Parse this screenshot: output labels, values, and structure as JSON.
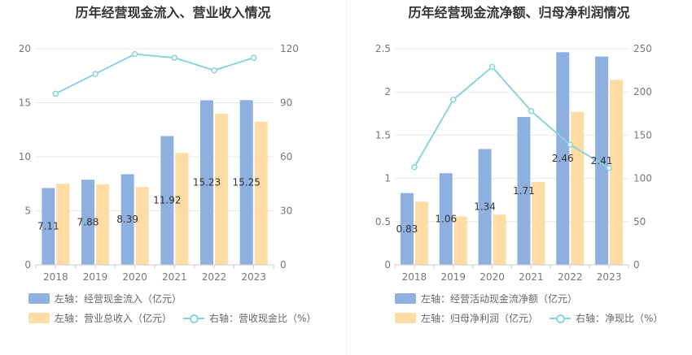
{
  "chart_data": [
    {
      "type": "bar",
      "title": "历年经营现金流入、营业收入情况",
      "categories": [
        "2018",
        "2019",
        "2020",
        "2021",
        "2022",
        "2023"
      ],
      "left_axis": {
        "min": 0,
        "max": 20,
        "ticks": [
          "0",
          "5",
          "10",
          "15",
          "20"
        ]
      },
      "right_axis": {
        "min": 0,
        "max": 120,
        "ticks": [
          "0",
          "30",
          "60",
          "90",
          "120"
        ]
      },
      "series": [
        {
          "name": "左轴：经营现金流入（亿元）",
          "type": "bar",
          "axis": "left",
          "color": "#8eb0de",
          "values": [
            7.11,
            7.88,
            8.39,
            11.92,
            15.23,
            15.25
          ],
          "labels": [
            "7.11",
            "7.88",
            "8.39",
            "11.92",
            "15.23",
            "15.25"
          ]
        },
        {
          "name": "左轴：营业总收入（亿元）",
          "type": "bar",
          "axis": "left",
          "color": "#fedca4",
          "values": [
            7.5,
            7.45,
            7.2,
            10.35,
            14.0,
            13.25
          ]
        },
        {
          "name": "右轴：营收现金比（%）",
          "type": "line",
          "axis": "right",
          "color": "#8ad3dc",
          "values": [
            95,
            106,
            117,
            115,
            108,
            115
          ]
        }
      ]
    },
    {
      "type": "bar",
      "title": "历年经营现金流净额、归母净利润情况",
      "categories": [
        "2018",
        "2019",
        "2020",
        "2021",
        "2022",
        "2023"
      ],
      "left_axis": {
        "min": 0,
        "max": 2.5,
        "ticks": [
          "0",
          "0.5",
          "1",
          "1.5",
          "2",
          "2.5"
        ]
      },
      "right_axis": {
        "min": 0,
        "max": 250,
        "ticks": [
          "0",
          "50",
          "100",
          "150",
          "200",
          "250"
        ]
      },
      "series": [
        {
          "name": "左轴：经营活动现金流净额（亿元）",
          "type": "bar",
          "axis": "left",
          "color": "#8eb0de",
          "values": [
            0.83,
            1.06,
            1.34,
            1.71,
            2.46,
            2.41
          ],
          "labels": [
            "0.83",
            "1.06",
            "1.34",
            "1.71",
            "2.46",
            "2.41"
          ]
        },
        {
          "name": "左轴：归母净利润（亿元）",
          "type": "bar",
          "axis": "left",
          "color": "#fedca4",
          "values": [
            0.73,
            0.56,
            0.58,
            0.96,
            1.77,
            2.14
          ]
        },
        {
          "name": "右轴：净现比（%）",
          "type": "line",
          "axis": "right",
          "color": "#8ad3dc",
          "values": [
            113,
            191,
            229,
            178,
            139,
            112
          ]
        }
      ]
    }
  ]
}
